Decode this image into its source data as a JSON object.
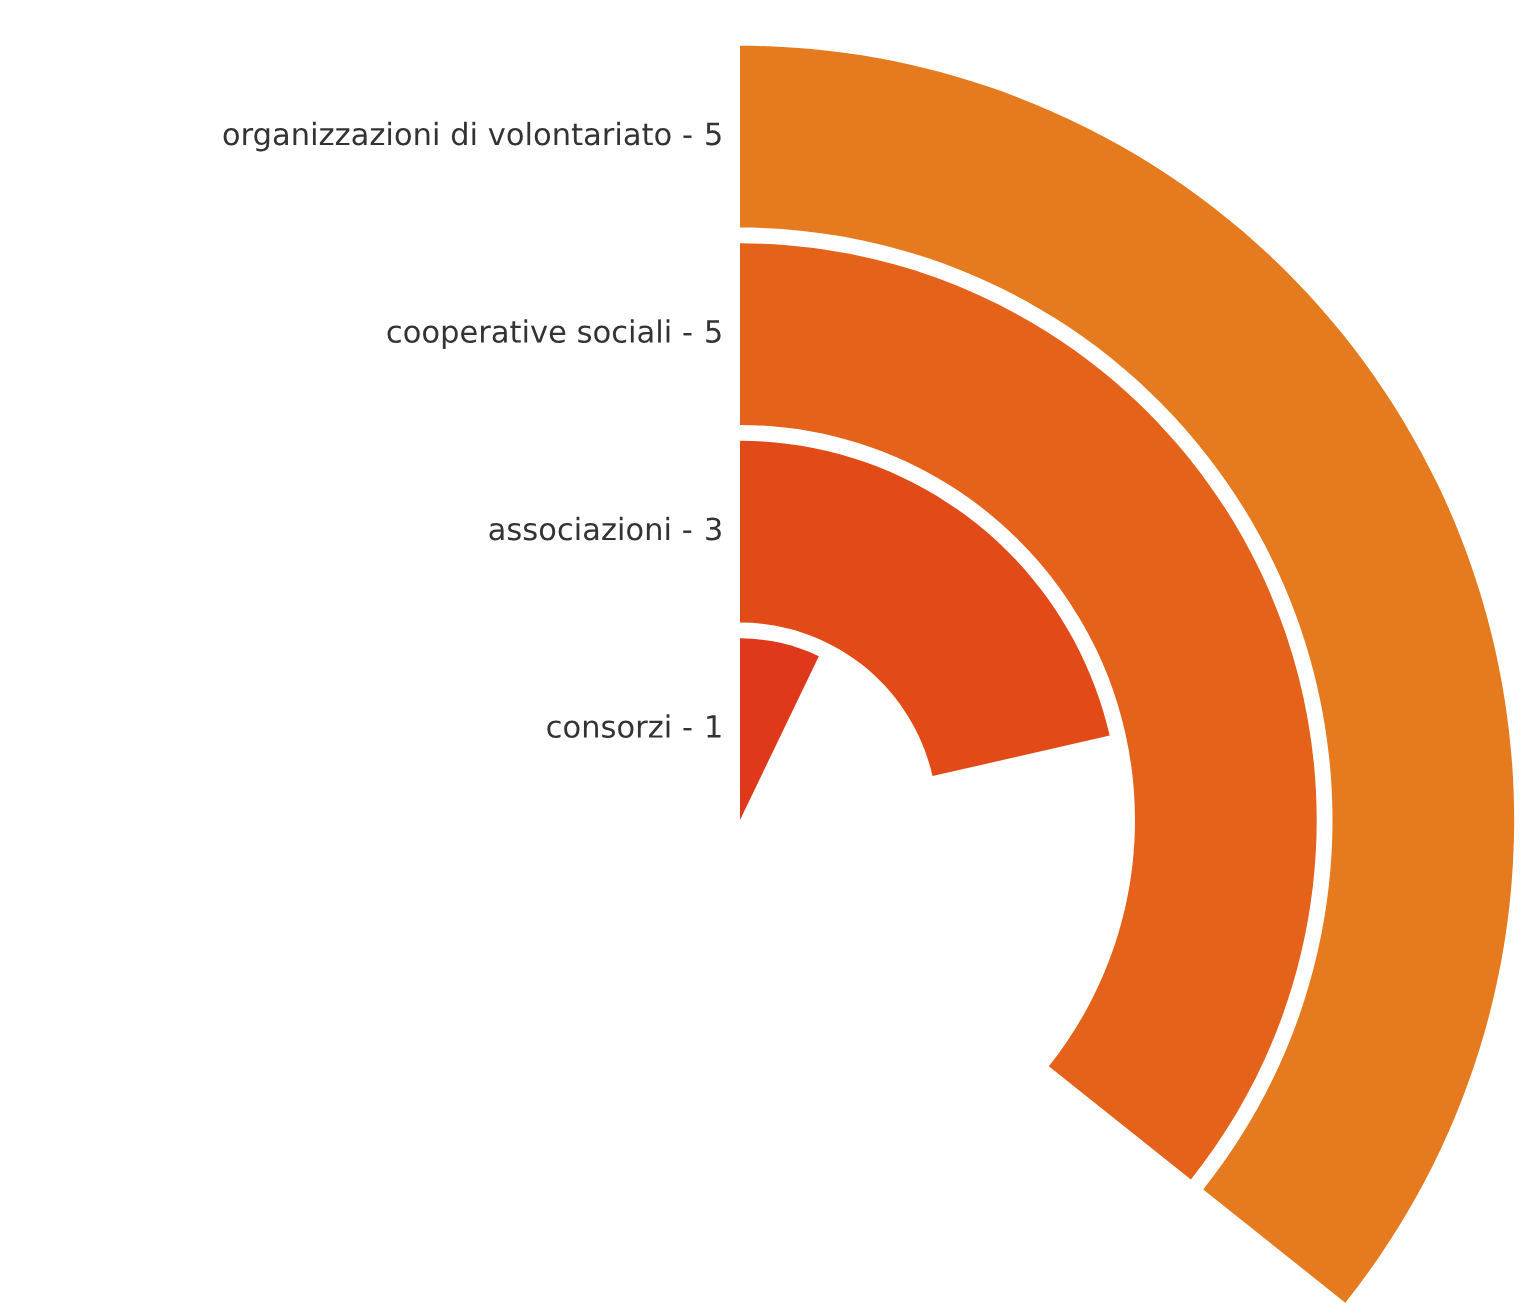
{
  "chart_data": {
    "type": "other",
    "categories": [
      "organizzazioni di volontariato -",
      "cooperative sociali -",
      "associazioni -",
      "consorzi -"
    ],
    "values": [
      5,
      5,
      3,
      1
    ],
    "data_labels": true,
    "colors": [
      "#e67a1e",
      "#e5621a",
      "#e24b17",
      "#e0381a"
    ]
  }
}
